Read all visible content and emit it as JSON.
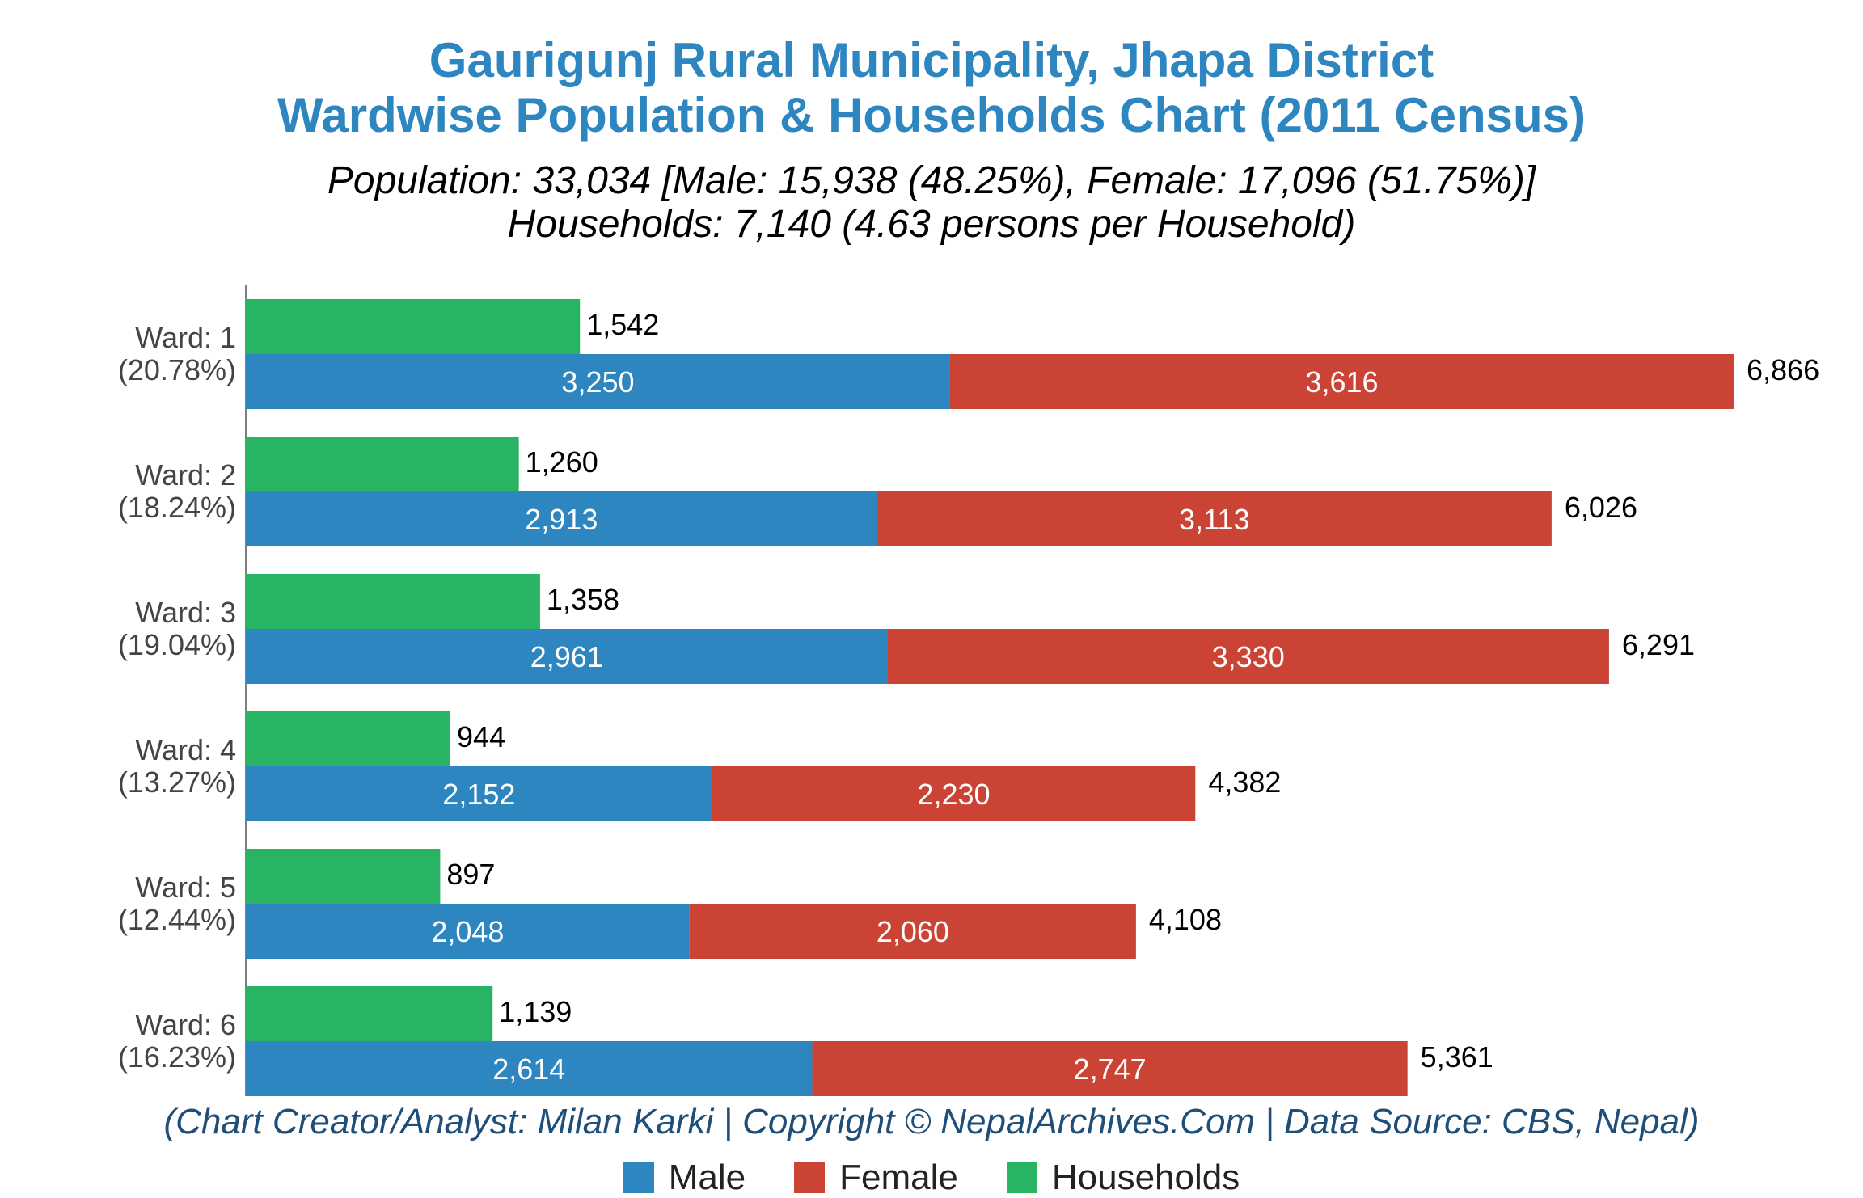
{
  "title_line1": "Gaurigunj Rural Municipality, Jhapa District",
  "title_line2": "Wardwise Population & Households Chart (2011 Census)",
  "subtitle_line1": "Population: 33,034 [Male: 15,938 (48.25%), Female: 17,096 (51.75%)]",
  "subtitle_line2": "Households: 7,140 (4.63 persons per Household)",
  "credit": "(Chart Creator/Analyst: Milan Karki | Copyright © NepalArchives.Com | Data Source: CBS, Nepal)",
  "colors": {
    "male": "#2e86c1",
    "female": "#cb4335",
    "households": "#28b463"
  },
  "chart_data": {
    "type": "bar",
    "orientation": "horizontal",
    "categories": [
      "Ward: 1",
      "Ward: 2",
      "Ward: 3",
      "Ward: 4",
      "Ward: 5",
      "Ward: 6"
    ],
    "category_shares": [
      "(20.78%)",
      "(18.24%)",
      "(19.04%)",
      "(13.27%)",
      "(12.44%)",
      "(16.23%)"
    ],
    "series": [
      {
        "name": "Male",
        "values": [
          3250,
          2913,
          2961,
          2152,
          2048,
          2614
        ],
        "labels": [
          "3,250",
          "2,913",
          "2,961",
          "2,152",
          "2,048",
          "2,614"
        ]
      },
      {
        "name": "Female",
        "values": [
          3616,
          3113,
          3330,
          2230,
          2060,
          2747
        ],
        "labels": [
          "3,616",
          "3,113",
          "3,330",
          "2,230",
          "2,060",
          "2,747"
        ]
      },
      {
        "name": "Households",
        "values": [
          1542,
          1260,
          1358,
          944,
          897,
          1139
        ],
        "labels": [
          "1,542",
          "1,260",
          "1,358",
          "944",
          "897",
          "1,139"
        ]
      }
    ],
    "totals": [
      6866,
      6026,
      6291,
      4382,
      4108,
      5361
    ],
    "total_labels": [
      "6,866",
      "6,026",
      "6,291",
      "4,382",
      "4,108",
      "5,361"
    ],
    "xlim": [
      0,
      7000
    ],
    "stacked": [
      "Male",
      "Female"
    ],
    "grid": false,
    "legend_position": "bottom"
  }
}
